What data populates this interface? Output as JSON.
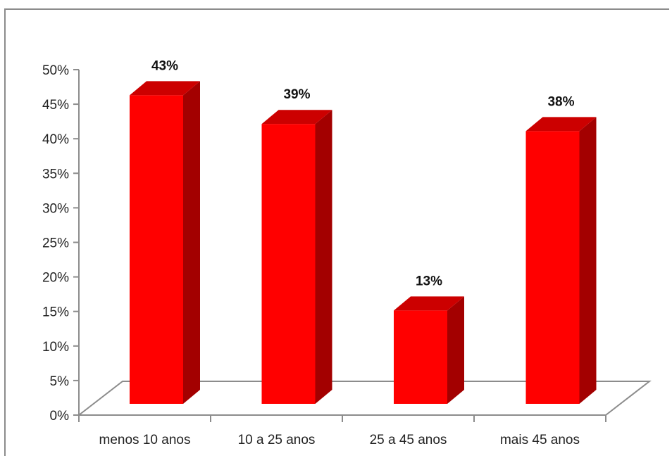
{
  "chart_data": {
    "type": "bar",
    "categories": [
      "menos 10 anos",
      "10 a 25 anos",
      "25 a 45 anos",
      "mais 45 anos"
    ],
    "values": [
      43,
      39,
      13,
      38
    ],
    "data_labels": [
      "43%",
      "39%",
      "13%",
      "38%"
    ],
    "ylim": [
      0,
      50
    ],
    "yticks": [
      "0%",
      "5%",
      "10%",
      "15%",
      "20%",
      "25%",
      "30%",
      "35%",
      "40%",
      "45%",
      "50%"
    ],
    "grid": false,
    "legend": "none",
    "style": "3d-column",
    "colors": {
      "front": "#ff0000",
      "side": "#a30000",
      "top": "#cc0000",
      "floor_line": "#8c8c8c"
    }
  }
}
